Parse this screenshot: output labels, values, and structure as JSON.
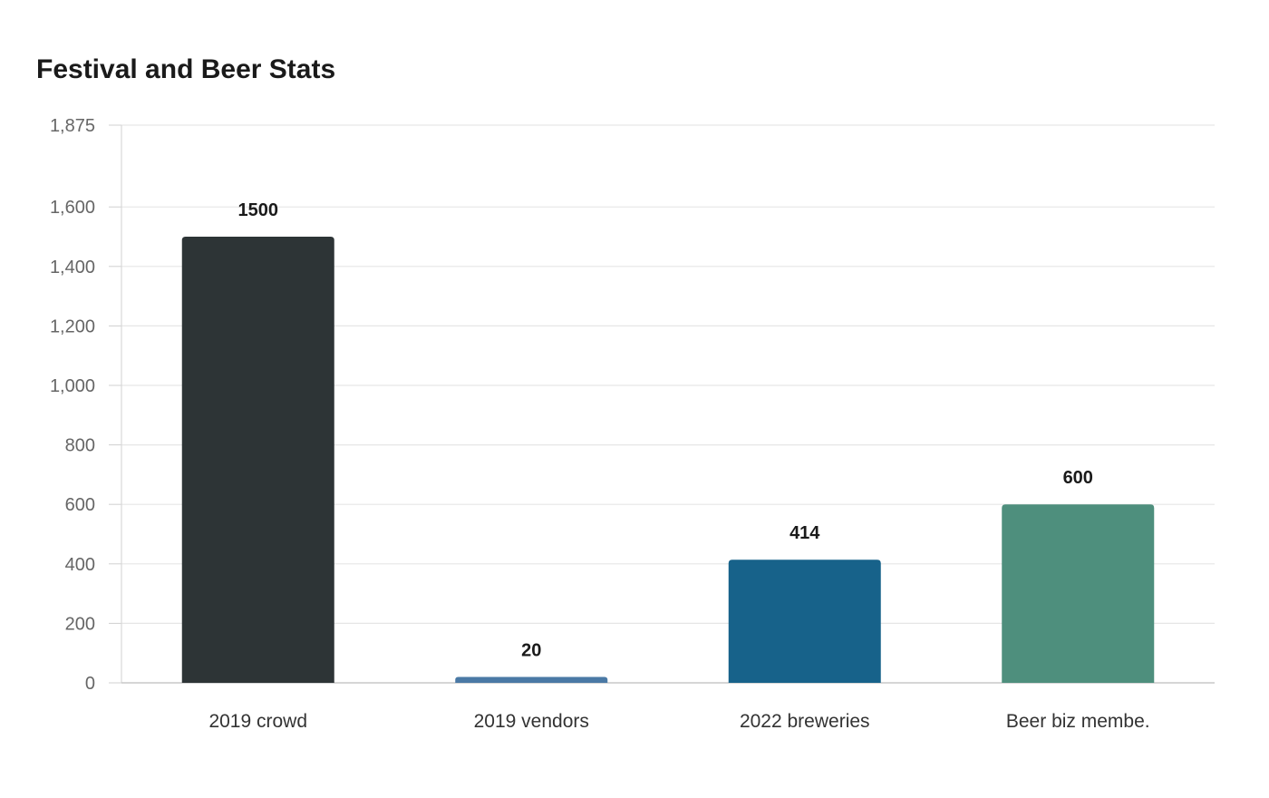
{
  "chart_data": {
    "type": "bar",
    "title": "Festival and Beer Stats",
    "categories": [
      "2019 crowd",
      "2019 vendors",
      "2022 breweries",
      "Beer biz membe."
    ],
    "values": [
      1500,
      20,
      414,
      600
    ],
    "data_labels": [
      "1500",
      "20",
      "414",
      "600"
    ],
    "colors": [
      "#2d3436",
      "#4a79a5",
      "#17628a",
      "#4e8f7d"
    ],
    "xlabel": "",
    "ylabel": "",
    "ylim": [
      0,
      1875
    ],
    "yticks": [
      0,
      200,
      400,
      600,
      800,
      1000,
      1200,
      1400,
      1600,
      1875
    ],
    "ytick_labels": [
      "0",
      "200",
      "400",
      "600",
      "800",
      "1,000",
      "1,200",
      "1,400",
      "1,600",
      "1,875"
    ],
    "grid": true,
    "legend": "none"
  }
}
